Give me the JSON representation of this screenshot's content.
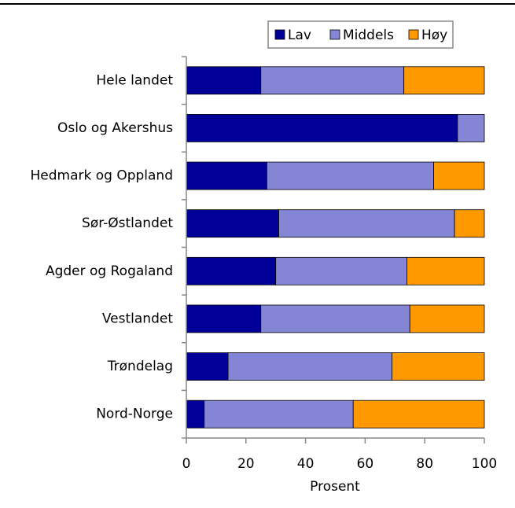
{
  "chart_data": {
    "type": "stacked_barh",
    "categories": [
      "Hele landet",
      "Oslo og Akershus",
      "Hedmark og Oppland",
      "Sør-Østlandet",
      "Agder og Rogaland",
      "Vestlandet",
      "Trøndelag",
      "Nord-Norge"
    ],
    "series": [
      {
        "name": "Lav",
        "color": "#000099",
        "values": [
          25,
          91,
          27,
          31,
          30,
          25,
          14,
          6
        ]
      },
      {
        "name": "Middels",
        "color": "#8585d6",
        "values": [
          48,
          9,
          56,
          59,
          44,
          50,
          55,
          50
        ]
      },
      {
        "name": "Høy",
        "color": "#ff9900",
        "values": [
          27,
          0,
          17,
          10,
          26,
          25,
          31,
          44
        ]
      }
    ],
    "xlabel": "Prosent",
    "xlim": [
      0,
      100
    ],
    "xticks": [
      0,
      20,
      40,
      60,
      80,
      100
    ],
    "legend": "top"
  }
}
